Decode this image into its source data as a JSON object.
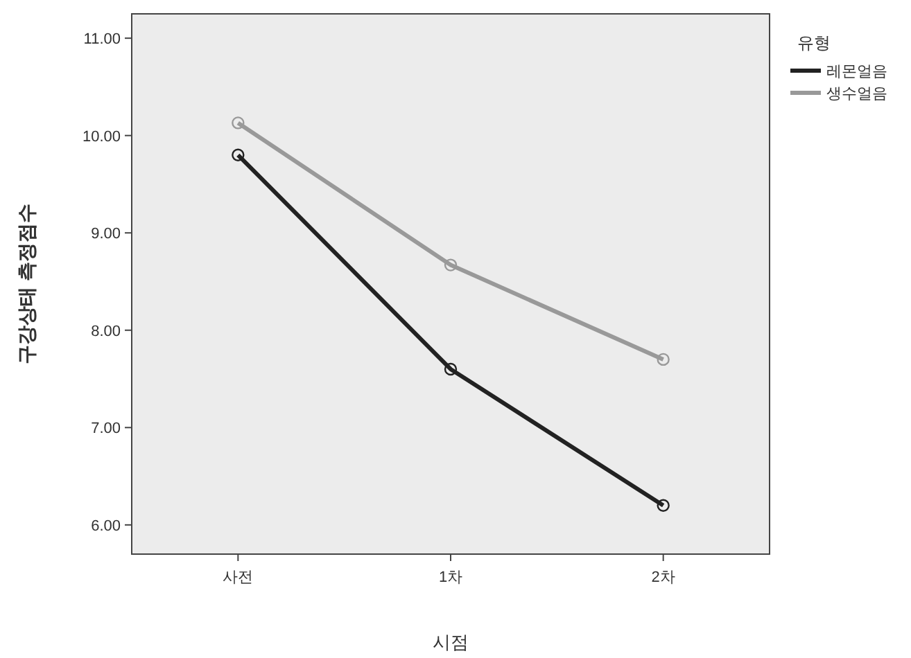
{
  "chart_data": {
    "type": "line",
    "xlabel": "시점",
    "ylabel": "구강상태 측정점수",
    "legend_title": "유형",
    "categories": [
      "사전",
      "1차",
      "2차"
    ],
    "series": [
      {
        "name": "레몬얼음",
        "color": "#222222",
        "values": [
          9.8,
          7.6,
          6.2
        ]
      },
      {
        "name": "생수얼음",
        "color": "#999999",
        "values": [
          10.13,
          8.67,
          7.7
        ]
      }
    ],
    "ylim": [
      5.7,
      11.25
    ],
    "yticks": [
      {
        "value": 6,
        "label": "6.00"
      },
      {
        "value": 7,
        "label": "7.00"
      },
      {
        "value": 8,
        "label": "8.00"
      },
      {
        "value": 9,
        "label": "9.00"
      },
      {
        "value": 10,
        "label": "10.00"
      },
      {
        "value": 11,
        "label": "11.00"
      }
    ],
    "grid": false,
    "legend": "right",
    "marker": "circle",
    "line_style": "solid"
  }
}
